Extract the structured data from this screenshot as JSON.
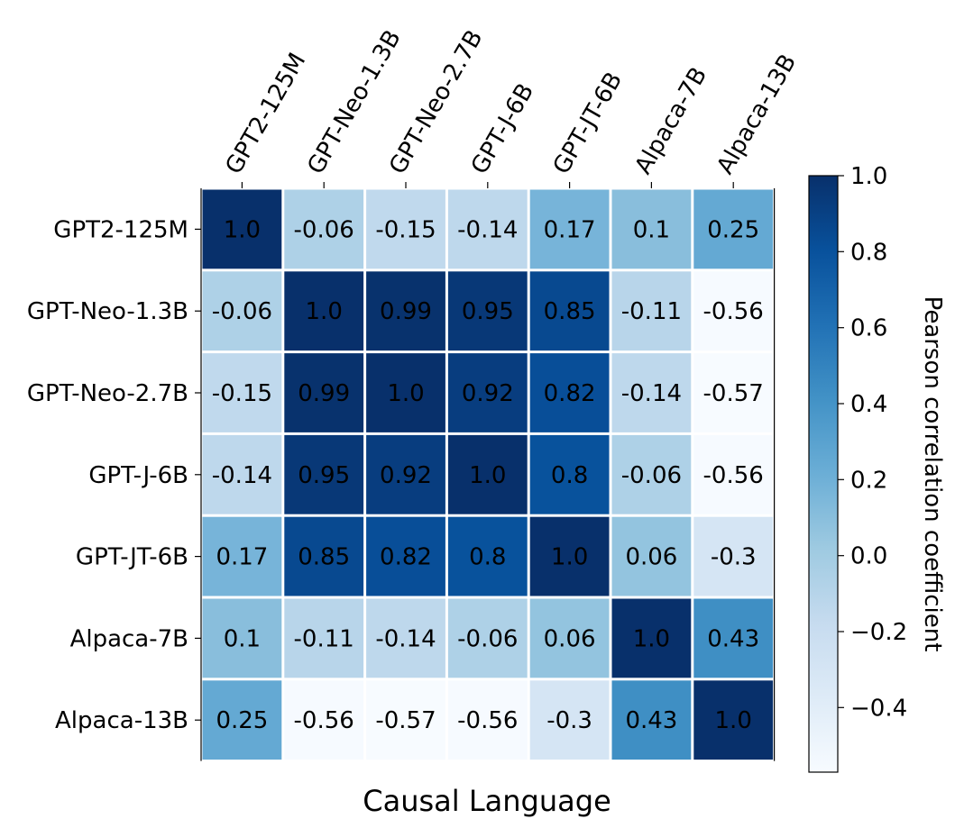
{
  "chart_data": {
    "type": "heatmap",
    "title": "",
    "xlabel": "Causal Language",
    "ylabel": "",
    "x_categories": [
      "GPT2-125M",
      "GPT-Neo-1.3B",
      "GPT-Neo-2.7B",
      "GPT-J-6B",
      "GPT-JT-6B",
      "Alpaca-7B",
      "Alpaca-13B"
    ],
    "y_categories": [
      "GPT2-125M",
      "GPT-Neo-1.3B",
      "GPT-Neo-2.7B",
      "GPT-J-6B",
      "GPT-JT-6B",
      "Alpaca-7B",
      "Alpaca-13B"
    ],
    "values": [
      [
        1.0,
        -0.06,
        -0.15,
        -0.14,
        0.17,
        0.1,
        0.25
      ],
      [
        -0.06,
        1.0,
        0.99,
        0.95,
        0.85,
        -0.11,
        -0.56
      ],
      [
        -0.15,
        0.99,
        1.0,
        0.92,
        0.82,
        -0.14,
        -0.57
      ],
      [
        -0.14,
        0.95,
        0.92,
        1.0,
        0.8,
        -0.06,
        -0.56
      ],
      [
        0.17,
        0.85,
        0.82,
        0.8,
        1.0,
        0.06,
        -0.3
      ],
      [
        0.1,
        -0.11,
        -0.14,
        -0.06,
        0.06,
        1.0,
        0.43
      ],
      [
        0.25,
        -0.56,
        -0.57,
        -0.56,
        -0.3,
        0.43,
        1.0
      ]
    ],
    "cell_labels": [
      [
        "1.0",
        "-0.06",
        "-0.15",
        "-0.14",
        "0.17",
        "0.1",
        "0.25"
      ],
      [
        "-0.06",
        "1.0",
        "0.99",
        "0.95",
        "0.85",
        "-0.11",
        "-0.56"
      ],
      [
        "-0.15",
        "0.99",
        "1.0",
        "0.92",
        "0.82",
        "-0.14",
        "-0.57"
      ],
      [
        "-0.14",
        "0.95",
        "0.92",
        "1.0",
        "0.8",
        "-0.06",
        "-0.56"
      ],
      [
        "0.17",
        "0.85",
        "0.82",
        "0.8",
        "1.0",
        "0.06",
        "-0.3"
      ],
      [
        "0.1",
        "-0.11",
        "-0.14",
        "-0.06",
        "0.06",
        "1.0",
        "0.43"
      ],
      [
        "0.25",
        "-0.56",
        "-0.57",
        "-0.56",
        "-0.3",
        "0.43",
        "1.0"
      ]
    ],
    "x_axis_position": "top",
    "colormap": "Blues",
    "colorbar": {
      "label": "Pearson correlation coefficient",
      "range": [
        -0.57,
        1.0
      ],
      "ticks": [
        1.0,
        0.8,
        0.6,
        0.4,
        0.2,
        0.0,
        -0.2,
        -0.4
      ],
      "tick_labels": [
        "1.0",
        "0.8",
        "0.6",
        "0.4",
        "0.2",
        "0.0",
        "−0.2",
        "−0.4"
      ],
      "position": "right"
    },
    "grid": false
  }
}
